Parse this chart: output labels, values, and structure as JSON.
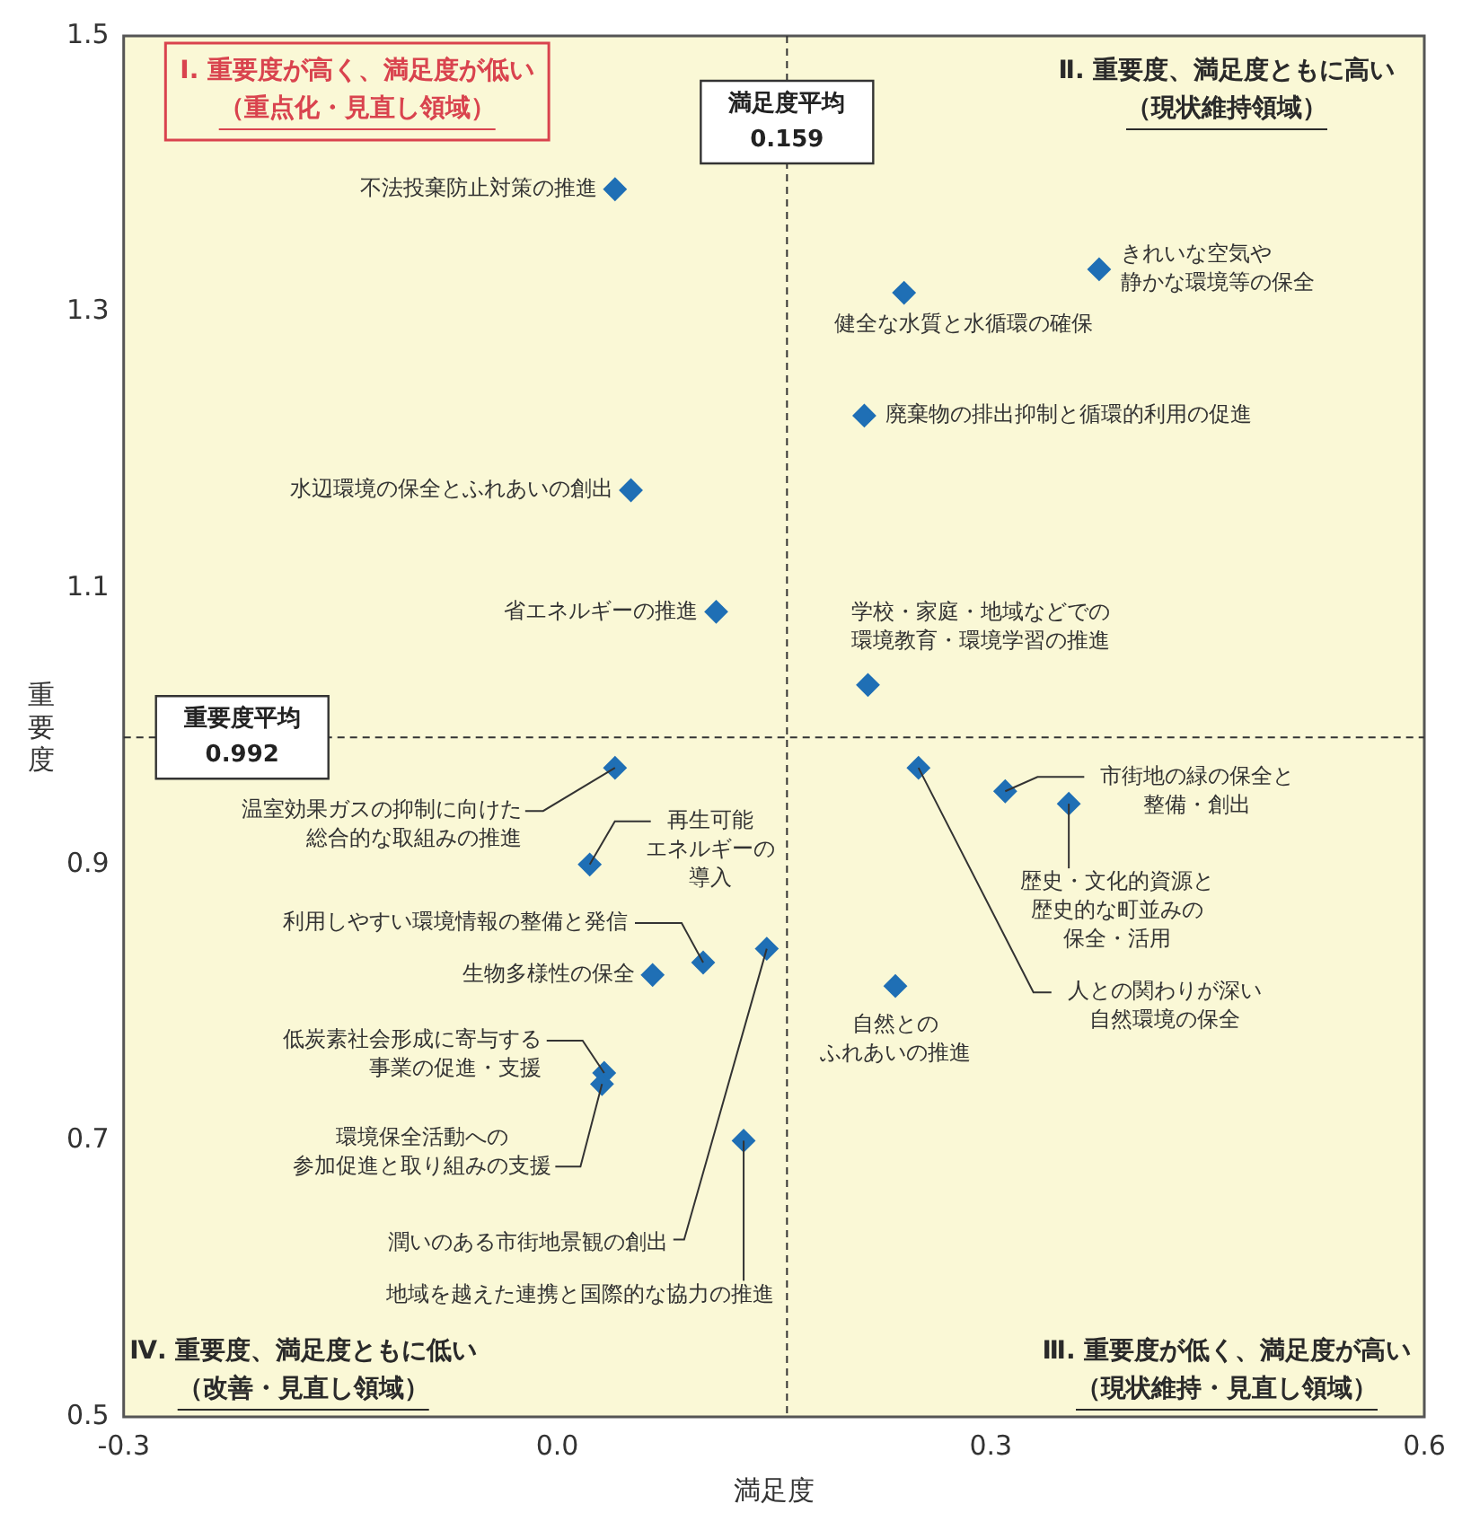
{
  "chart_data": {
    "type": "scatter",
    "xlabel": "満足度",
    "ylabel": "重要度",
    "marker": "diamond",
    "grid": false,
    "legend": false,
    "xlim": [
      -0.3,
      0.6
    ],
    "xticks": [
      -0.3,
      {
        "value": 0,
        "label": "0.0"
      },
      0.3,
      0.6
    ],
    "ylim": [
      0.5,
      1.5
    ],
    "yticks": [
      0.5,
      0.7,
      0.9,
      1.1,
      1.3,
      1.5
    ],
    "series": [
      {
        "color": "#1f6fb5",
        "x": [
          0.04,
          0.375,
          0.24,
          0.2125,
          0.051,
          0.11,
          0.215,
          0.04,
          0.0225,
          0.31,
          0.354,
          0.25,
          0.101,
          0.066,
          0.145,
          0.234,
          0.0325,
          0.031,
          0.129
        ],
        "values": [
          1.389,
          1.331,
          1.314,
          1.225,
          1.171,
          1.083,
          1.03,
          0.97,
          0.9,
          0.953,
          0.944,
          0.97,
          0.829,
          0.82,
          0.839,
          0.812,
          0.749,
          0.741,
          0.7
        ]
      }
    ],
    "ref_lines": [
      {
        "axis": "x",
        "value": 0.159,
        "label": "満足度平均 0.159",
        "line_style": "dashed"
      },
      {
        "axis": "y",
        "value": 0.992,
        "label": "重要度平均 0.992",
        "line_style": "dashed"
      }
    ],
    "annotations": [
      {
        "text": "不法投棄防止対策の推進",
        "x": 0.04,
        "y": 1.389
      },
      {
        "text": "きれいな空気や静かな環境等の保全",
        "x": 0.375,
        "y": 1.331
      },
      {
        "text": "健全な水質と水循環の確保",
        "x": 0.24,
        "y": 1.314
      },
      {
        "text": "廃棄物の排出抑制と循環的利用の促進",
        "x": 0.2125,
        "y": 1.225
      },
      {
        "text": "水辺環境の保全とふれあいの創出",
        "x": 0.051,
        "y": 1.171
      },
      {
        "text": "省エネルギーの推進",
        "x": 0.11,
        "y": 1.083
      },
      {
        "text": "学校・家庭・地域などでの環境教育・環境学習の推進",
        "x": 0.215,
        "y": 1.03
      },
      {
        "text": "温室効果ガスの抑制に向けた総合的な取組みの推進",
        "x": 0.04,
        "y": 0.97
      },
      {
        "text": "再生可能エネルギーの導入",
        "x": 0.0225,
        "y": 0.9
      },
      {
        "text": "市街地の緑の保全と整備・創出",
        "x": 0.31,
        "y": 0.953
      },
      {
        "text": "歴史・文化的資源と歴史的な町並みの保全・活用",
        "x": 0.354,
        "y": 0.944
      },
      {
        "text": "人との関わりが深い自然環境の保全",
        "x": 0.25,
        "y": 0.97
      },
      {
        "text": "利用しやすい環境情報の整備と発信",
        "x": 0.101,
        "y": 0.829
      },
      {
        "text": "生物多様性の保全",
        "x": 0.066,
        "y": 0.82
      },
      {
        "text": "潤いのある市街地景観の創出",
        "x": 0.145,
        "y": 0.839
      },
      {
        "text": "自然とのふれあいの推進",
        "x": 0.234,
        "y": 0.812
      },
      {
        "text": "低炭素社会形成に寄与する事業の促進・支援",
        "x": 0.0325,
        "y": 0.749
      },
      {
        "text": "環境保全活動への参加促進と取り組みの支援",
        "x": 0.031,
        "y": 0.741
      },
      {
        "text": "地域を越えた連携と国際的な協力の推進",
        "x": 0.129,
        "y": 0.7
      },
      "Ⅰ. 重要度が高く、満足度が低い",
      "（重点化・見直し領域）",
      "Ⅱ. 重要度、満足度ともに高い",
      "（現状維持領域）",
      "Ⅲ. 重要度が低く、満足度が高い",
      "（現状維持・見直し領域）",
      "Ⅳ. 重要度、満足度ともに低い",
      "（改善・見直し領域）"
    ]
  }
}
